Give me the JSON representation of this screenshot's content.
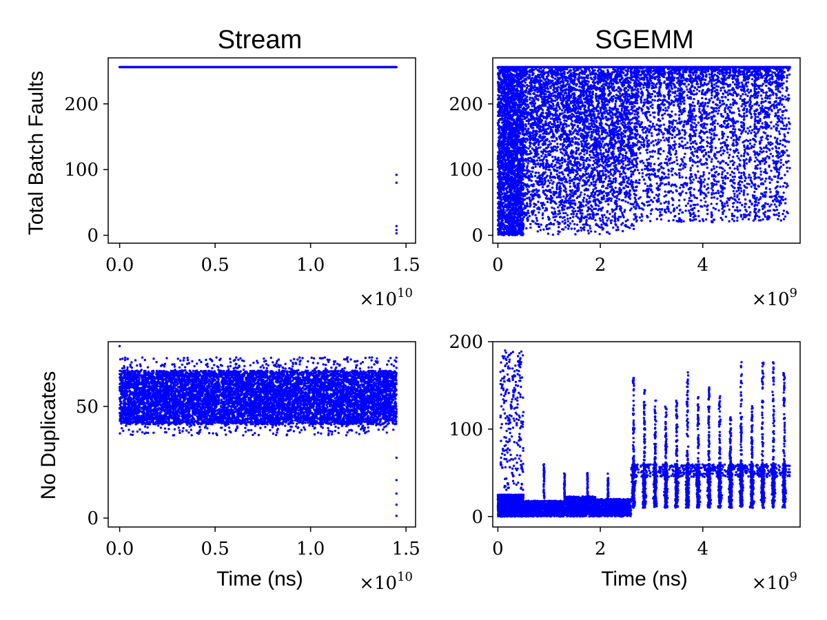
{
  "figure": {
    "column_titles": [
      "Stream",
      "SGEMM"
    ],
    "row_labels": [
      "Total Batch Faults",
      "No Duplicates"
    ],
    "xlabel": "Time (ns)"
  },
  "chart_data": [
    {
      "type": "scatter",
      "panel": "stream-total-batch-faults",
      "title": "Stream",
      "ylabel": "Total Batch Faults",
      "xlabel": "",
      "x_offset_base": "10",
      "x_offset_exp": "10",
      "xlim": [
        -0.06,
        1.55
      ],
      "ylim": [
        -12,
        270
      ],
      "xticks": [
        0.0,
        0.5,
        1.0,
        1.5
      ],
      "xtick_labels": [
        "0.0",
        "0.5",
        "1.0",
        "1.5"
      ],
      "yticks": [
        0,
        100,
        200
      ],
      "ytick_labels": [
        "0",
        "100",
        "200"
      ],
      "color": "#0000ff",
      "grid": false,
      "series": [
        {
          "description_band": "constant 256 across x 0.0 to 1.45",
          "x_range": [
            0.0,
            1.45
          ],
          "y_band": [
            256,
            256
          ],
          "extra_points": [
            [
              1.45,
              92
            ],
            [
              1.45,
              80
            ],
            [
              1.45,
              14
            ],
            [
              1.45,
              8
            ],
            [
              1.45,
              3
            ]
          ]
        }
      ]
    },
    {
      "type": "scatter",
      "panel": "sgemm-total-batch-faults",
      "title": "SGEMM",
      "ylabel": "",
      "xlabel": "",
      "x_offset_base": "10",
      "x_offset_exp": "9",
      "xlim": [
        -0.1,
        5.9
      ],
      "ylim": [
        -12,
        270
      ],
      "xticks": [
        0,
        2,
        4
      ],
      "xtick_labels": [
        "0",
        "2",
        "4"
      ],
      "yticks": [
        0,
        100,
        200
      ],
      "ytick_labels": [
        "0",
        "100",
        "200"
      ],
      "color": "#0000ff",
      "grid": false,
      "series": [
        {
          "x_range": [
            0.0,
            0.5
          ],
          "y_range": [
            0,
            256
          ],
          "density": "very high"
        },
        {
          "x_range": [
            0.5,
            2.7
          ],
          "y_range": [
            0,
            256
          ],
          "density": "high"
        },
        {
          "x_range": [
            2.7,
            5.7
          ],
          "y_range": [
            20,
            256
          ],
          "density": "medium, vertical streaks"
        },
        {
          "x_range": [
            0.0,
            5.7
          ],
          "y_band": [
            256,
            256
          ],
          "density": "top line"
        }
      ]
    },
    {
      "type": "scatter",
      "panel": "stream-no-duplicates",
      "title": "",
      "ylabel": "No Duplicates",
      "xlabel": "Time (ns)",
      "x_offset_base": "10",
      "x_offset_exp": "10",
      "xlim": [
        -0.06,
        1.55
      ],
      "ylim": [
        -4,
        79
      ],
      "xticks": [
        0.0,
        0.5,
        1.0,
        1.5
      ],
      "xtick_labels": [
        "0.0",
        "0.5",
        "1.0",
        "1.5"
      ],
      "yticks": [
        0,
        50
      ],
      "ytick_labels": [
        "0",
        "50"
      ],
      "color": "#0000ff",
      "grid": false,
      "series": [
        {
          "x_range": [
            0.0,
            1.45
          ],
          "y_band": [
            42,
            66
          ],
          "outlier_range": [
            37,
            72
          ],
          "extra_points": [
            [
              0.0,
              77
            ],
            [
              1.45,
              27
            ],
            [
              1.45,
              17
            ],
            [
              1.45,
              11
            ],
            [
              1.45,
              6
            ],
            [
              1.45,
              1
            ]
          ]
        }
      ]
    },
    {
      "type": "scatter",
      "panel": "sgemm-no-duplicates",
      "title": "",
      "ylabel": "",
      "xlabel": "Time (ns)",
      "x_offset_base": "10",
      "x_offset_exp": "9",
      "xlim": [
        -0.1,
        5.9
      ],
      "ylim": [
        -12,
        200
      ],
      "xticks": [
        0,
        2,
        4
      ],
      "xtick_labels": [
        "0",
        "2",
        "4"
      ],
      "yticks": [
        0,
        100,
        200
      ],
      "ytick_labels": [
        "0",
        "100",
        "200"
      ],
      "color": "#0000ff",
      "grid": false,
      "series": [
        {
          "x_range": [
            0.0,
            0.5
          ],
          "y_band": [
            0,
            25
          ],
          "sparse_up_to": 190
        },
        {
          "x_range": [
            0.5,
            2.6
          ],
          "y_band": [
            0,
            20
          ],
          "spikes_at": [
            0.9,
            1.3,
            1.75,
            2.15
          ],
          "spike_height": 60
        },
        {
          "x_range": [
            2.6,
            5.7
          ],
          "y_band": [
            10,
            60
          ],
          "streak_period": 0.21,
          "streak_max": 185
        }
      ]
    }
  ]
}
